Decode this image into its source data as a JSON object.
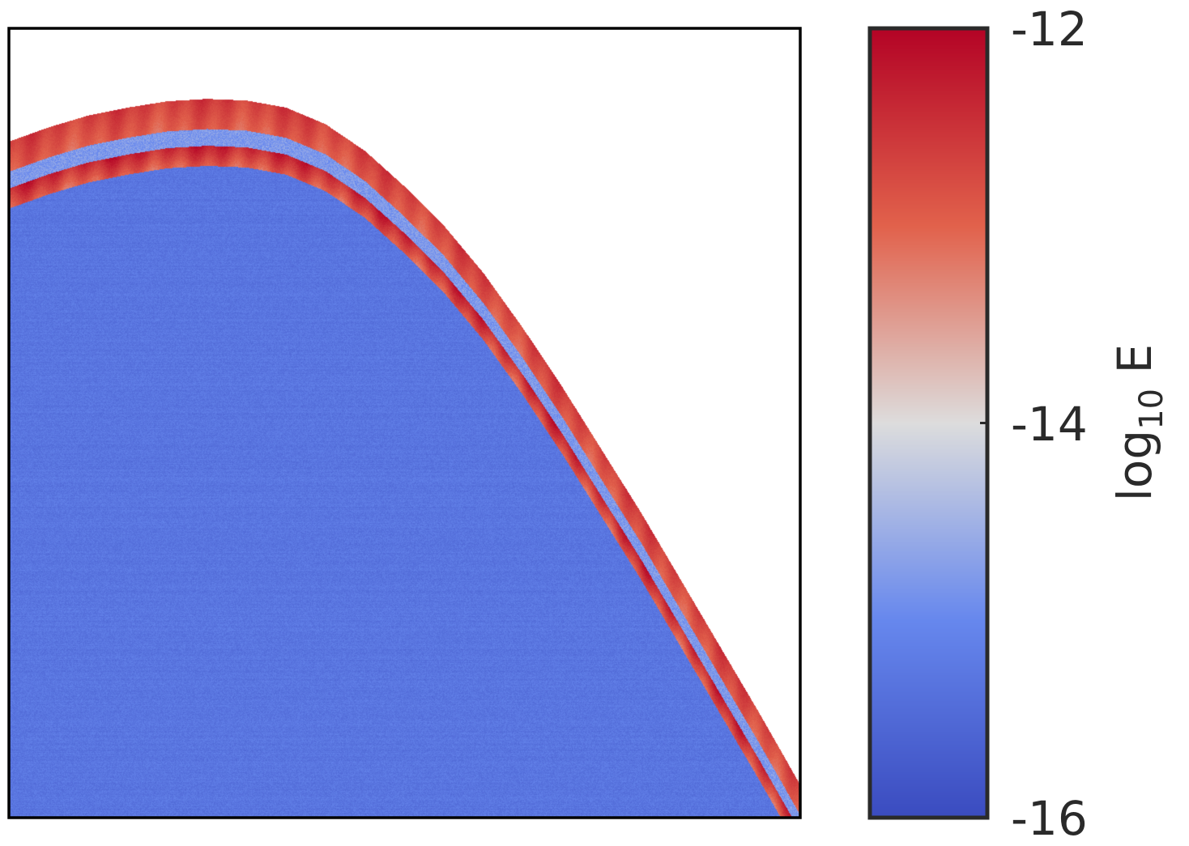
{
  "chart_data": {
    "type": "heatmap",
    "title": "",
    "xlabel": "",
    "ylabel": "",
    "grid": false,
    "colormap": "coolwarm",
    "colors": {
      "low": "#3b4cc0",
      "mid": "#dddddd",
      "high": "#b40426",
      "background": "#ffffff",
      "frame": "#000000",
      "text": "#2a2a2a"
    },
    "colorbar": {
      "label_main": "log",
      "label_sub": "10",
      "label_end": " E",
      "range": [
        -16,
        -12
      ],
      "ticks": [
        {
          "value": -12,
          "label": "-12"
        },
        {
          "value": -14,
          "label": "-14"
        },
        {
          "value": -16,
          "label": "-16"
        }
      ],
      "placement": "right"
    },
    "domain_boundary": {
      "description_x": [
        0.0,
        0.05,
        0.1,
        0.15,
        0.2,
        0.25,
        0.3,
        0.35,
        0.4,
        0.45,
        0.5,
        0.55,
        0.6,
        0.65,
        0.7,
        0.75,
        0.8,
        0.85,
        0.9,
        0.95,
        1.0
      ],
      "boundary_y": [
        0.857,
        0.875,
        0.89,
        0.9,
        0.908,
        0.911,
        0.909,
        0.9,
        0.879,
        0.845,
        0.8,
        0.75,
        0.69,
        0.62,
        0.545,
        0.465,
        0.385,
        0.3,
        0.215,
        0.13,
        0.042
      ]
    },
    "values": {
      "interior_log10E": -15.3,
      "boundary_band_log10E": -12.6
    }
  }
}
